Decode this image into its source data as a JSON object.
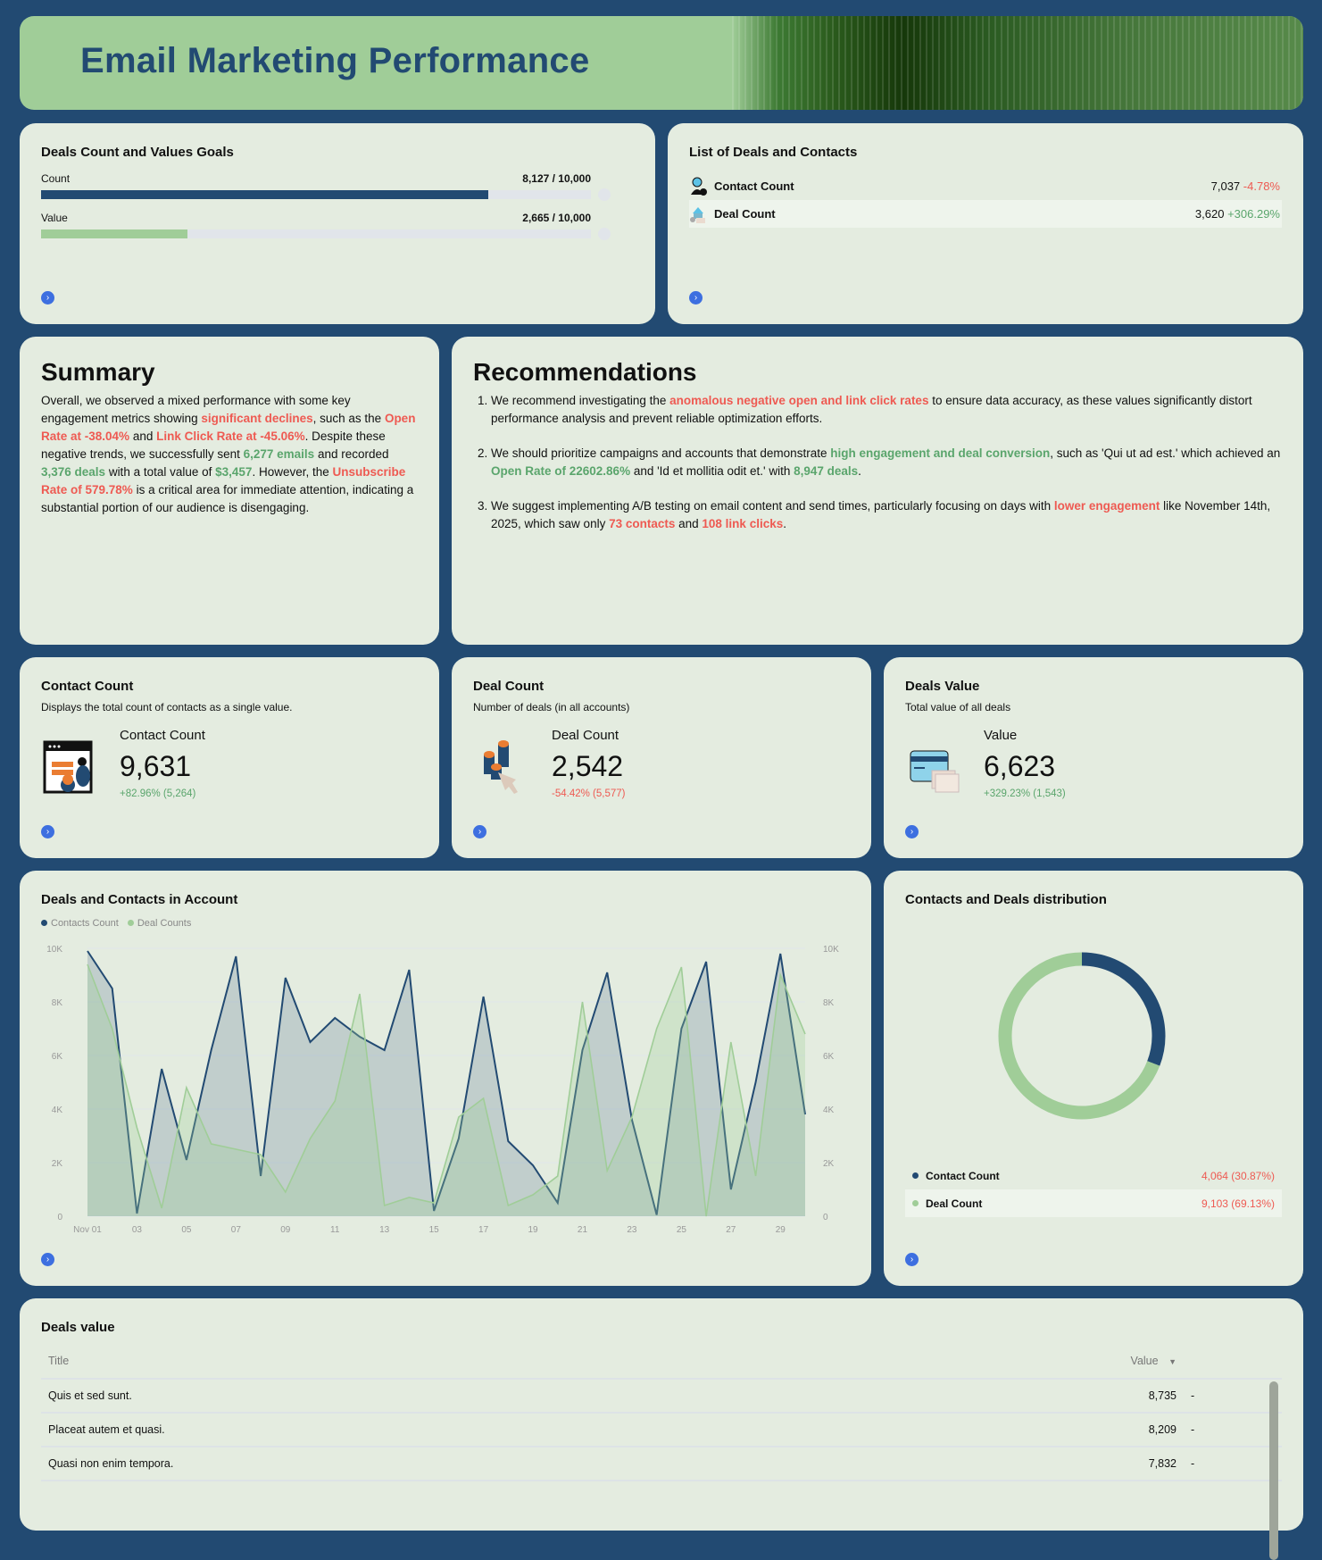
{
  "header": {
    "title": "Email Marketing Performance"
  },
  "goals": {
    "title": "Deals Count and Values Goals",
    "rows": [
      {
        "label": "Count",
        "value": "8,127 / 10,000",
        "fraction": 0.8127,
        "color": "#224a72"
      },
      {
        "label": "Value",
        "value": "2,665 / 10,000",
        "fraction": 0.2665,
        "color": "#a0cd98"
      }
    ]
  },
  "list": {
    "title": "List of Deals and Contacts",
    "items": [
      {
        "icon": "contact-person-icon",
        "label": "Contact Count",
        "value": "7,037",
        "change": "-4.78%",
        "trend": "neg"
      },
      {
        "icon": "deal-store-icon",
        "label": "Deal Count",
        "value": "3,620",
        "change": "+306.29%",
        "trend": "pos"
      }
    ]
  },
  "summary": {
    "title": "Summary",
    "segments": [
      {
        "t": "Overall, we observed a mixed performance with some key engagement metrics showing "
      },
      {
        "t": "significant declines",
        "c": "red"
      },
      {
        "t": ", such as the "
      },
      {
        "t": "Open Rate at -38.04%",
        "c": "red"
      },
      {
        "t": " and "
      },
      {
        "t": "Link Click Rate at -45.06%",
        "c": "red"
      },
      {
        "t": ". Despite these negative trends, we successfully sent "
      },
      {
        "t": "6,277 emails",
        "c": "green"
      },
      {
        "t": " and recorded "
      },
      {
        "t": "3,376 deals",
        "c": "green"
      },
      {
        "t": " with a total value of "
      },
      {
        "t": "$3,457",
        "c": "green"
      },
      {
        "t": ". However, the "
      },
      {
        "t": "Unsubscribe Rate of 579.78%",
        "c": "red"
      },
      {
        "t": " is a critical area for immediate attention, indicating a substantial portion of our audience is disengaging."
      }
    ]
  },
  "recommendations": {
    "title": "Recommendations",
    "items": [
      [
        {
          "t": "We recommend investigating the "
        },
        {
          "t": "anomalous negative open and link click rates",
          "c": "red"
        },
        {
          "t": " to ensure data accuracy, as these values significantly distort performance analysis and prevent reliable optimization efforts."
        }
      ],
      [
        {
          "t": "We should prioritize campaigns and accounts that demonstrate "
        },
        {
          "t": "high engagement and deal conversion",
          "c": "green"
        },
        {
          "t": ", such as 'Qui ut ad est.' which achieved an "
        },
        {
          "t": "Open Rate of 22602.86%",
          "c": "green"
        },
        {
          "t": " and 'Id et mollitia odit et.' with "
        },
        {
          "t": "8,947 deals",
          "c": "green"
        },
        {
          "t": "."
        }
      ],
      [
        {
          "t": "We suggest implementing A/B testing on email content and send times, particularly focusing on days with "
        },
        {
          "t": "lower engagement",
          "c": "red"
        },
        {
          "t": " like November 14th, 2025, which saw only "
        },
        {
          "t": "73 contacts",
          "c": "red"
        },
        {
          "t": " and "
        },
        {
          "t": "108 link clicks",
          "c": "red"
        },
        {
          "t": "."
        }
      ]
    ]
  },
  "kpis": [
    {
      "title": "Contact Count",
      "desc": "Displays the total count of contacts as a single value.",
      "label": "Contact Count",
      "value": "9,631",
      "delta": "+82.96% (5,264)",
      "trend": "pos",
      "icon": "contact-window-icon"
    },
    {
      "title": "Deal Count",
      "desc": "Number of deals (in all accounts)",
      "label": "Deal Count",
      "value": "2,542",
      "delta": "-54.42% (5,577)",
      "trend": "neg",
      "icon": "coins-cursor-icon"
    },
    {
      "title": "Deals Value",
      "desc": "Total value of all deals",
      "label": "Value",
      "value": "6,623",
      "delta": "+329.23% (1,543)",
      "trend": "pos",
      "icon": "credit-card-icon"
    }
  ],
  "chart_data": [
    {
      "type": "area",
      "title": "Deals and Contacts in Account",
      "legend": "top-left",
      "x": [
        "Nov 01",
        "02",
        "03",
        "04",
        "05",
        "06",
        "07",
        "08",
        "09",
        "10",
        "11",
        "12",
        "13",
        "14",
        "15",
        "16",
        "17",
        "18",
        "19",
        "20",
        "21",
        "22",
        "23",
        "24",
        "25",
        "26",
        "27",
        "28",
        "29",
        "30"
      ],
      "x_tick_labels": [
        "Nov 01",
        "03",
        "05",
        "07",
        "09",
        "11",
        "13",
        "15",
        "17",
        "19",
        "21",
        "23",
        "25",
        "27",
        "29"
      ],
      "y_tick_labels": [
        "0",
        "2K",
        "4K",
        "6K",
        "8K",
        "10K"
      ],
      "ylim": [
        0,
        10000
      ],
      "grid": true,
      "series": [
        {
          "name": "Contacts Count",
          "color": "#224a72",
          "values": [
            9900,
            8500,
            100,
            5500,
            2100,
            6200,
            9700,
            1500,
            8900,
            6500,
            7400,
            6700,
            6200,
            9200,
            200,
            2900,
            8200,
            2800,
            1900,
            500,
            6200,
            9100,
            3600,
            50,
            7000,
            9500,
            1000,
            5000,
            9800,
            3800
          ]
        },
        {
          "name": "Deal Counts",
          "color": "#a0cd98",
          "values": [
            9400,
            7000,
            3300,
            300,
            4800,
            2700,
            2500,
            2300,
            900,
            2900,
            4300,
            8300,
            400,
            700,
            500,
            3700,
            4400,
            400,
            800,
            1500,
            8000,
            1700,
            3700,
            7000,
            9300,
            0,
            6500,
            1500,
            9000,
            6800
          ]
        }
      ]
    },
    {
      "type": "pie",
      "title": "Contacts and Deals distribution",
      "donut": true,
      "slices": [
        {
          "label": "Contact Count",
          "value": 4064,
          "display": "4,064  (30.87%)",
          "color": "#224a72"
        },
        {
          "label": "Deal Count",
          "value": 9103,
          "display": "9,103  (69.13%)",
          "color": "#a0cd98"
        }
      ]
    }
  ],
  "table": {
    "title": "Deals value",
    "columns": [
      "Title",
      "Value"
    ],
    "rows": [
      {
        "title": "Quis et sed sunt.",
        "value": "8,735",
        "trend": "-"
      },
      {
        "title": "Placeat autem et quasi.",
        "value": "8,209",
        "trend": "-"
      },
      {
        "title": "Quasi non enim tempora.",
        "value": "7,832",
        "trend": "-"
      }
    ]
  },
  "nav_icon": "chevron-right-circle-icon"
}
